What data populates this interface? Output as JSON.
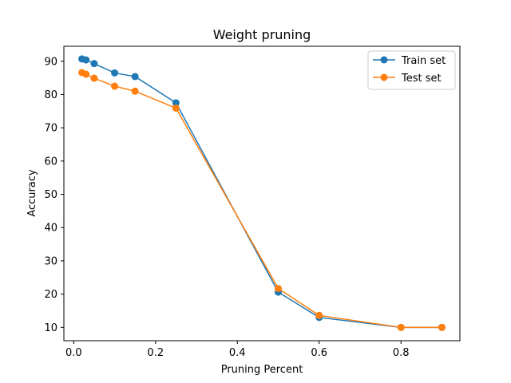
{
  "chart_data": {
    "type": "line",
    "title": "Weight pruning",
    "xlabel": "Pruning Percent",
    "ylabel": "Accuracy",
    "xlim": [
      -0.024,
      0.944
    ],
    "ylim": [
      6.0,
      94.5
    ],
    "xticks": [
      0.0,
      0.2,
      0.4,
      0.6,
      0.8
    ],
    "xtick_labels": [
      "0.0",
      "0.2",
      "0.4",
      "0.6",
      "0.8"
    ],
    "yticks": [
      10,
      20,
      30,
      40,
      50,
      60,
      70,
      80,
      90
    ],
    "ytick_labels": [
      "10",
      "20",
      "30",
      "40",
      "50",
      "60",
      "70",
      "80",
      "90"
    ],
    "grid": false,
    "legend": "top-right",
    "x": [
      0.02,
      0.03,
      0.05,
      0.1,
      0.15,
      0.25,
      0.5,
      0.6,
      0.8,
      0.9
    ],
    "series": [
      {
        "name": "Train set",
        "color": "#1f77b4",
        "values": [
          90.7,
          90.4,
          89.3,
          86.5,
          85.4,
          77.5,
          20.6,
          13.0,
          10.0,
          10.0
        ]
      },
      {
        "name": "Test set",
        "color": "#ff7f0e",
        "values": [
          86.6,
          86.1,
          84.9,
          82.5,
          81.0,
          75.9,
          21.7,
          13.6,
          10.0,
          10.0
        ]
      }
    ]
  }
}
